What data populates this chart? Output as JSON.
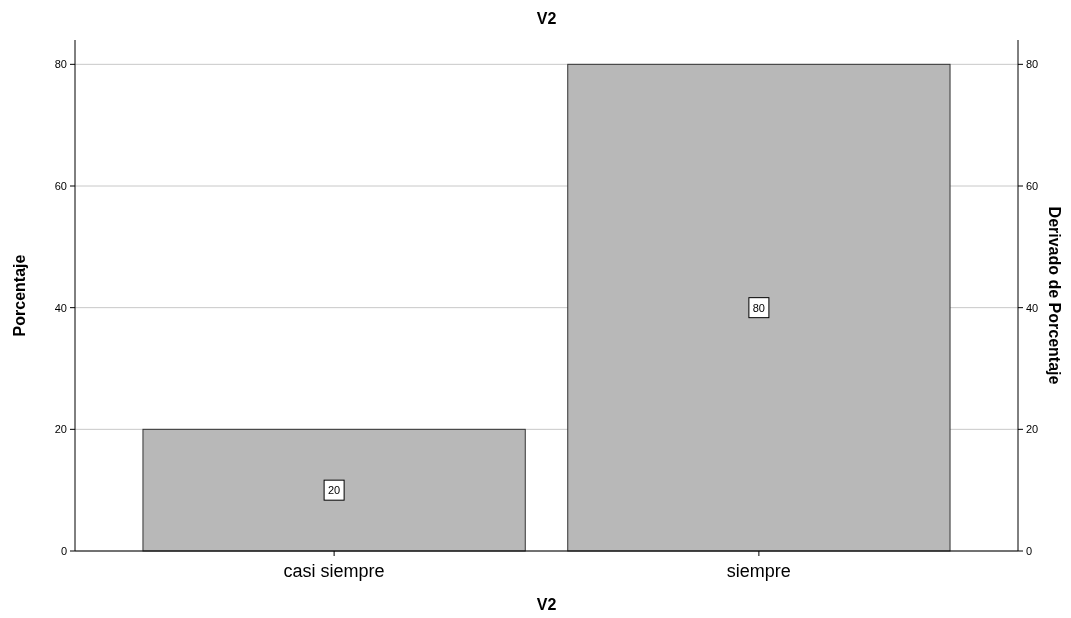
{
  "chart_data": {
    "type": "bar",
    "title": "V2",
    "xlabel": "V2",
    "ylabel": "Porcentaje",
    "y2label": "Derivado de Porcentaje",
    "categories": [
      "casi siempre",
      "siempre"
    ],
    "series": [
      {
        "color": "#b8b8b8",
        "values": [
          20,
          80
        ]
      }
    ],
    "ylim": [
      0,
      84
    ],
    "yticks": [
      0,
      20,
      40,
      60,
      80
    ],
    "y2lim": [
      0,
      84
    ],
    "y2ticks": [
      0,
      20,
      40,
      60,
      80
    ],
    "grid": "y",
    "data_labels": true
  }
}
